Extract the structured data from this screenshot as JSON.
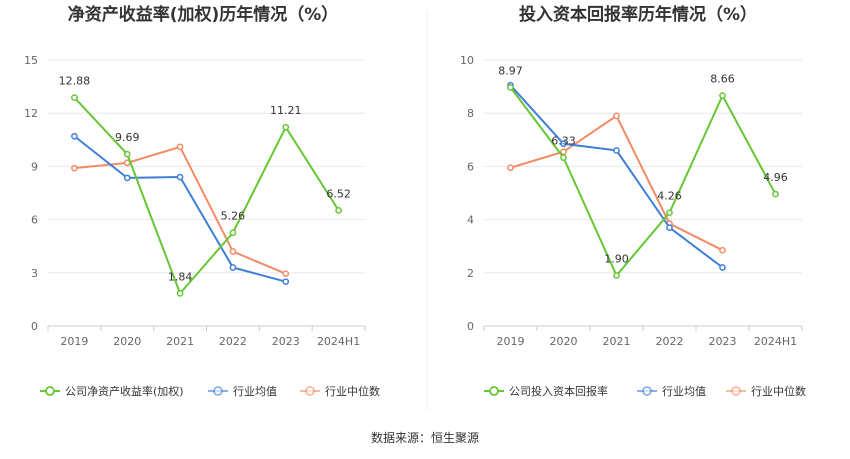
{
  "source": "数据来源：恒生聚源",
  "colors": {
    "company": "#66c634",
    "avg": "#3f7fd9",
    "median": "#f28b65",
    "grid": "#e8e8e8",
    "axis": "#cccccc"
  },
  "chart_data": [
    {
      "type": "line",
      "title": "净资产收益率(加权)历年情况（%）",
      "categories": [
        "2019",
        "2020",
        "2021",
        "2022",
        "2023",
        "2024H1"
      ],
      "ylim": [
        0,
        15
      ],
      "yticks": [
        "0",
        "3",
        "6",
        "9",
        "12",
        "15"
      ],
      "ytick_values": [
        0,
        3,
        6,
        9,
        12,
        15
      ],
      "legend_position": "bottom",
      "series": [
        {
          "name": "公司净资产收益率(加权)",
          "color": "#66c634",
          "values": [
            12.88,
            9.69,
            1.84,
            5.26,
            11.21,
            6.52
          ],
          "labels": [
            "12.88",
            "9.69",
            "1.84",
            "5.26",
            "11.21",
            "6.52"
          ]
        },
        {
          "name": "行业均值",
          "color": "#3f7fd9",
          "values": [
            10.7,
            8.35,
            8.4,
            3.3,
            2.5,
            null
          ],
          "labels": []
        },
        {
          "name": "行业中位数",
          "color": "#f28b65",
          "values": [
            8.9,
            9.2,
            10.1,
            4.2,
            2.95,
            null
          ],
          "labels": []
        }
      ]
    },
    {
      "type": "line",
      "title": "投入资本回报率历年情况（%）",
      "categories": [
        "2019",
        "2020",
        "2021",
        "2022",
        "2023",
        "2024H1"
      ],
      "ylim": [
        0,
        10
      ],
      "yticks": [
        "0",
        "2",
        "4",
        "6",
        "8",
        "10"
      ],
      "ytick_values": [
        0,
        2,
        4,
        6,
        8,
        10
      ],
      "legend_position": "bottom",
      "series": [
        {
          "name": "公司投入资本回报率",
          "color": "#66c634",
          "values": [
            8.97,
            6.33,
            1.9,
            4.26,
            8.66,
            4.96
          ],
          "labels": [
            "8.97",
            "6.33",
            "1.90",
            "4.26",
            "8.66",
            "4.96"
          ]
        },
        {
          "name": "行业均值",
          "color": "#3f7fd9",
          "values": [
            9.05,
            6.85,
            6.6,
            3.7,
            2.2,
            null
          ],
          "labels": []
        },
        {
          "name": "行业中位数",
          "color": "#f28b65",
          "values": [
            5.95,
            6.55,
            7.9,
            3.85,
            2.85,
            null
          ],
          "labels": []
        }
      ]
    }
  ]
}
